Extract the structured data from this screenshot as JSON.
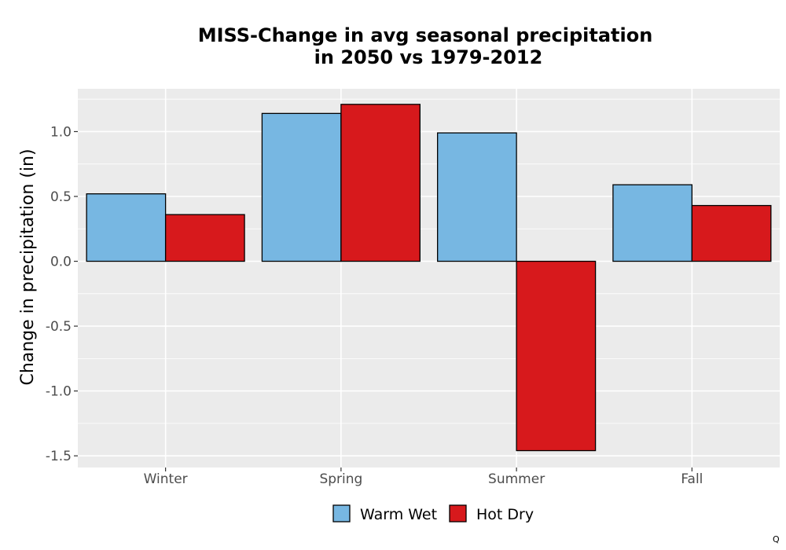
{
  "chart_data": {
    "type": "bar",
    "title_lines": [
      "MISS-Change in avg seasonal precipitation",
      "in 2050 vs 1979-2012"
    ],
    "xlabel": "",
    "ylabel": "Change in precipitation (in)",
    "categories": [
      "Winter",
      "Spring",
      "Summer",
      "Fall"
    ],
    "series": [
      {
        "name": "Warm Wet",
        "color": "#77b7e2",
        "values": [
          0.52,
          1.14,
          0.99,
          0.59
        ]
      },
      {
        "name": "Hot Dry",
        "color": "#d7191c",
        "values": [
          0.36,
          1.21,
          -1.46,
          0.43
        ]
      }
    ],
    "ylim": [
      -1.59,
      1.33
    ],
    "yticks": [
      {
        "value": -1.5,
        "label": "-1.5"
      },
      {
        "value": -1.0,
        "label": "-1.0"
      },
      {
        "value": -0.5,
        "label": "-0.5"
      },
      {
        "value": 0.0,
        "label": "0.0"
      },
      {
        "value": 0.5,
        "label": "0.5"
      },
      {
        "value": 1.0,
        "label": "1.0"
      }
    ],
    "grid": true,
    "legend_position": "bottom",
    "panel_background": "#ebebeb",
    "grid_color": "#ffffff"
  },
  "corner_text": "Q"
}
